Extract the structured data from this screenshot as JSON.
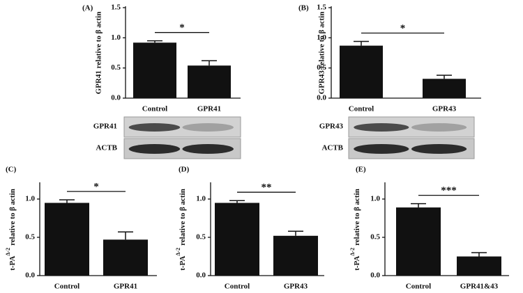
{
  "chart_data": [
    {
      "type": "bar",
      "panel": "(A)",
      "ylabel": "GPR41 relative to β actin",
      "categories": [
        "Control",
        "GPR41"
      ],
      "values": [
        0.92,
        0.54
      ],
      "errors": [
        0.03,
        0.08
      ],
      "color": "#111111",
      "ylim": [
        0,
        1.5
      ],
      "yticks": [
        {
          "value": 0,
          "label": "0.0"
        },
        {
          "value": 0.5,
          "label": "0.5"
        },
        {
          "value": 1,
          "label": "1.0"
        },
        {
          "value": 1.5,
          "label": "1.5"
        }
      ],
      "significance": "*",
      "blot_labels": [
        "GPR41",
        "ACTB"
      ]
    },
    {
      "type": "bar",
      "panel": "(B)",
      "ylabel": "GPR43 relative to β actin",
      "categories": [
        "Control",
        "GPR43"
      ],
      "values": [
        0.87,
        0.32
      ],
      "errors": [
        0.07,
        0.06
      ],
      "color": "#111111",
      "ylim": [
        0,
        1.5
      ],
      "yticks": [
        {
          "value": 0,
          "label": "0.0"
        },
        {
          "value": 0.5,
          "label": "0.5"
        },
        {
          "value": 1,
          "label": "1.0"
        },
        {
          "value": 1.5,
          "label": "1.5"
        }
      ],
      "significance": "*",
      "blot_labels": [
        "GPR43",
        "ACTB"
      ]
    },
    {
      "type": "bar",
      "panel": "(C)",
      "ylabel": "t-PA",
      "ylabel_sup": "Δ-2",
      "ylabel_rest": "relative to β actin",
      "categories": [
        "Control",
        "GPR41"
      ],
      "values": [
        0.95,
        0.47
      ],
      "errors": [
        0.04,
        0.1
      ],
      "color": "#111111",
      "ylim": [
        0,
        1.2
      ],
      "yticks": [
        {
          "value": 0,
          "label": "0.0"
        },
        {
          "value": 0.5,
          "label": "0.5"
        },
        {
          "value": 1,
          "label": "1.0"
        }
      ],
      "significance": "*"
    },
    {
      "type": "bar",
      "panel": "(D)",
      "ylabel": "t-PA",
      "ylabel_sup": "Δ-2",
      "ylabel_rest": "relative to β actin",
      "categories": [
        "Control",
        "GPR43"
      ],
      "values": [
        0.95,
        0.52
      ],
      "errors": [
        0.03,
        0.06
      ],
      "color": "#111111",
      "ylim": [
        0,
        1.2
      ],
      "yticks": [
        {
          "value": 0,
          "label": "0.0"
        },
        {
          "value": 0.5,
          "label": "0.5"
        },
        {
          "value": 1,
          "label": "1.0"
        }
      ],
      "significance": "**"
    },
    {
      "type": "bar",
      "panel": "(E)",
      "ylabel": "t-PA",
      "ylabel_sup": "Δ-2",
      "ylabel_rest": "relative to β actin",
      "categories": [
        "Control",
        "GPR41&43"
      ],
      "values": [
        0.89,
        0.25
      ],
      "errors": [
        0.05,
        0.05
      ],
      "color": "#111111",
      "ylim": [
        0,
        1.2
      ],
      "yticks": [
        {
          "value": 0,
          "label": "0.0"
        },
        {
          "value": 0.5,
          "label": "0.5"
        },
        {
          "value": 1,
          "label": "1.0"
        }
      ],
      "significance": "***"
    }
  ]
}
